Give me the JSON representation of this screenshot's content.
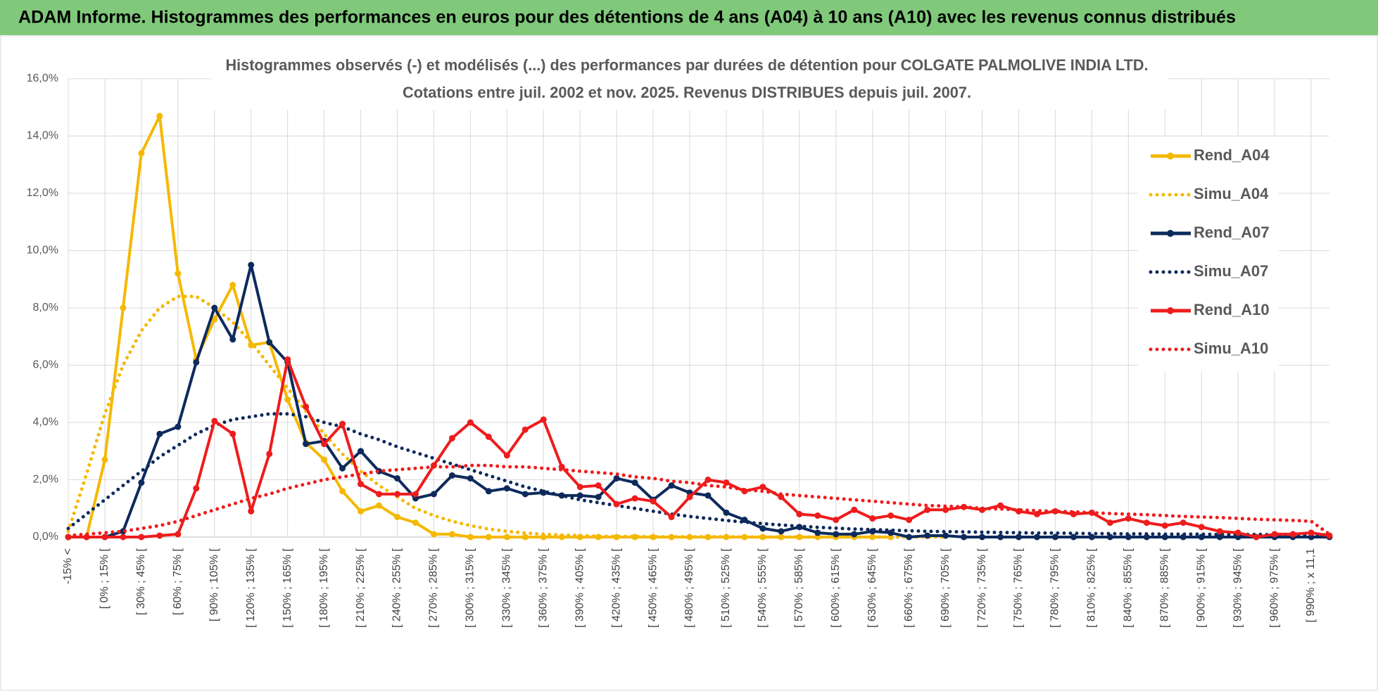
{
  "header": {
    "title": "ADAM Informe. Histogrammes des performances en euros pour des détentions de 4 ans (A04) à 10 ans (A10) avec les revenus connus distribués"
  },
  "chart_data": {
    "type": "line",
    "title": "Histogrammes observés (-) et modélisés (...) des performances par durées de détention pour COLGATE PALMOLIVE INDIA LTD.",
    "subtitle": "Cotations entre juil. 2002 et nov. 2025. Revenus DISTRIBUES depuis juil. 2007.",
    "categories": [
      "-15% <",
      null,
      "[ 0% ; 15% [",
      null,
      "[ 30% ; 45% [",
      null,
      "[ 60% ; 75% [",
      null,
      "[ 90% ; 105% [",
      null,
      "[ 120% ; 135% [",
      null,
      "[ 150% ; 165% [",
      null,
      "[ 180% ; 195% [",
      null,
      "[ 210% ; 225% [",
      null,
      "[ 240% ; 255% [",
      null,
      "[ 270% ; 285% [",
      null,
      "[ 300% ; 315% [",
      null,
      "[ 330% ; 345% [",
      null,
      "[ 360% ; 375% [",
      null,
      "[ 390% ; 405% [",
      null,
      "[ 420% ; 435% [",
      null,
      "[ 450% ; 465% [",
      null,
      "[ 480% ; 495% [",
      null,
      "[ 510% ; 525% [",
      null,
      "[ 540% ; 555% [",
      null,
      "[ 570% ; 585% [",
      null,
      "[ 600% ; 615% [",
      null,
      "[ 630% ; 645% [",
      null,
      "[ 660% ; 675% [",
      null,
      "[ 690% ; 705% [",
      null,
      "[ 720% ; 735% [",
      null,
      "[ 750% ; 765% [",
      null,
      "[ 780% ; 795% [",
      null,
      "[ 810% ; 825% [",
      null,
      "[ 840% ; 855% [",
      null,
      "[ 870% ; 885% [",
      null,
      "[ 900% ; 915% [",
      null,
      "[ 930% ; 945% [",
      null,
      "[ 960% ; 975% [",
      null,
      "[ 990% ; x 11,1",
      null
    ],
    "series": [
      {
        "name": "Rend_A04",
        "color": "#f5b800",
        "dotted": false,
        "marker": true,
        "values": [
          0,
          0,
          2.7,
          8.0,
          13.4,
          14.7,
          9.2,
          6.2,
          7.6,
          8.8,
          6.7,
          6.8,
          4.8,
          3.3,
          2.7,
          1.6,
          0.9,
          1.1,
          0.7,
          0.5,
          0.1,
          0.1,
          0,
          0,
          0,
          0,
          0,
          0,
          0,
          0,
          0,
          0,
          0,
          0,
          0,
          0,
          0,
          0,
          0,
          0,
          0,
          0,
          0,
          0,
          0,
          0,
          null,
          null,
          null,
          null,
          null,
          null,
          null,
          null,
          null,
          null,
          null,
          null,
          null,
          null,
          null,
          null,
          null,
          null,
          null,
          null,
          null,
          null,
          null,
          null
        ]
      },
      {
        "name": "Simu_A04",
        "color": "#f5b800",
        "dotted": true,
        "marker": false,
        "values": [
          0.2,
          2.2,
          4.3,
          6.0,
          7.2,
          8.0,
          8.4,
          8.4,
          8.0,
          7.5,
          6.8,
          6.0,
          5.2,
          4.4,
          3.6,
          2.9,
          2.3,
          1.8,
          1.4,
          1.0,
          0.75,
          0.55,
          0.4,
          0.28,
          0.2,
          0.14,
          0.1,
          0.07,
          0.05,
          0.03,
          0.02,
          0.02,
          0.01,
          0.01,
          0.01,
          0.01,
          0.01,
          0,
          0,
          0,
          0,
          0,
          0,
          0,
          0,
          0,
          0,
          0,
          0,
          null,
          null,
          null,
          null,
          null,
          null,
          null,
          null,
          null,
          null,
          null,
          null,
          null,
          null,
          null,
          null,
          null,
          null,
          null,
          null,
          null
        ]
      },
      {
        "name": "Rend_A07",
        "color": "#0d2a5c",
        "dotted": false,
        "marker": true,
        "values": [
          0,
          0,
          0,
          0.2,
          1.9,
          3.6,
          3.85,
          6.1,
          8.0,
          6.9,
          9.5,
          6.8,
          6.1,
          3.25,
          3.35,
          2.4,
          3.0,
          2.3,
          2.05,
          1.35,
          1.5,
          2.15,
          2.05,
          1.6,
          1.7,
          1.5,
          1.55,
          1.45,
          1.45,
          1.4,
          2.05,
          1.9,
          1.3,
          1.8,
          1.55,
          1.45,
          0.85,
          0.6,
          0.3,
          0.2,
          0.35,
          0.15,
          0.1,
          0.1,
          0.2,
          0.15,
          0,
          0.05,
          0.05,
          0,
          0,
          0,
          0,
          0,
          0,
          0,
          0,
          0,
          0,
          0,
          0,
          0,
          0,
          0,
          0,
          0,
          0,
          0,
          0,
          0
        ]
      },
      {
        "name": "Simu_A07",
        "color": "#0d2a5c",
        "dotted": true,
        "marker": false,
        "values": [
          0.3,
          0.8,
          1.3,
          1.8,
          2.3,
          2.8,
          3.2,
          3.6,
          3.9,
          4.1,
          4.2,
          4.3,
          4.3,
          4.2,
          4.0,
          3.85,
          3.6,
          3.4,
          3.15,
          2.95,
          2.75,
          2.55,
          2.35,
          2.15,
          1.95,
          1.75,
          1.6,
          1.45,
          1.3,
          1.2,
          1.1,
          1.0,
          0.9,
          0.8,
          0.72,
          0.65,
          0.58,
          0.52,
          0.47,
          0.42,
          0.38,
          0.34,
          0.31,
          0.28,
          0.26,
          0.24,
          0.22,
          0.2,
          0.19,
          0.18,
          0.17,
          0.16,
          0.15,
          0.14,
          0.14,
          0.13,
          0.12,
          0.12,
          0.11,
          0.11,
          0.1,
          0.1,
          0.1,
          0.09,
          0.09,
          0.09,
          0.08,
          0.08,
          0.08,
          0.08
        ]
      },
      {
        "name": "Rend_A10",
        "color": "#ee1c1c",
        "dotted": false,
        "marker": true,
        "values": [
          0,
          0,
          0,
          0,
          0,
          0.05,
          0.1,
          1.7,
          4.05,
          3.6,
          0.9,
          2.9,
          6.2,
          4.55,
          3.25,
          3.95,
          1.85,
          1.5,
          1.5,
          1.5,
          2.5,
          3.45,
          4.0,
          3.5,
          2.85,
          3.75,
          4.1,
          2.45,
          1.75,
          1.8,
          1.15,
          1.35,
          1.25,
          0.7,
          1.4,
          2.0,
          1.9,
          1.6,
          1.75,
          1.4,
          0.8,
          0.75,
          0.6,
          0.95,
          0.65,
          0.75,
          0.6,
          0.95,
          0.95,
          1.05,
          0.95,
          1.1,
          0.9,
          0.8,
          0.9,
          0.8,
          0.85,
          0.5,
          0.65,
          0.5,
          0.4,
          0.5,
          0.35,
          0.2,
          0.15,
          0,
          0.1,
          0.1,
          0.15,
          0.05
        ]
      },
      {
        "name": "Simu_A10",
        "color": "#ee1c1c",
        "dotted": true,
        "marker": false,
        "values": [
          0.05,
          0.1,
          0.15,
          0.2,
          0.3,
          0.4,
          0.55,
          0.75,
          0.95,
          1.15,
          1.35,
          1.5,
          1.7,
          1.85,
          2.0,
          2.1,
          2.2,
          2.3,
          2.35,
          2.4,
          2.45,
          2.45,
          2.5,
          2.5,
          2.45,
          2.45,
          2.4,
          2.35,
          2.3,
          2.25,
          2.2,
          2.1,
          2.05,
          1.95,
          1.9,
          1.8,
          1.75,
          1.65,
          1.6,
          1.5,
          1.45,
          1.4,
          1.35,
          1.3,
          1.25,
          1.2,
          1.15,
          1.1,
          1.08,
          1.05,
          1.0,
          0.98,
          0.95,
          0.92,
          0.9,
          0.88,
          0.85,
          0.82,
          0.8,
          0.78,
          0.75,
          0.72,
          0.7,
          0.68,
          0.65,
          0.62,
          0.6,
          0.58,
          0.55,
          0.1
        ]
      }
    ],
    "ylim": [
      0,
      16
    ],
    "yticks": [
      {
        "value": 0,
        "label": "0,0%"
      },
      {
        "value": 2,
        "label": "2,0%"
      },
      {
        "value": 4,
        "label": "4,0%"
      },
      {
        "value": 6,
        "label": "6,0%"
      },
      {
        "value": 8,
        "label": "8,0%"
      },
      {
        "value": 10,
        "label": "10,0%"
      },
      {
        "value": 12,
        "label": "12,0%"
      },
      {
        "value": 14,
        "label": "14,0%"
      },
      {
        "value": 16,
        "label": "16,0%"
      }
    ],
    "grid": true,
    "legend": "right"
  }
}
